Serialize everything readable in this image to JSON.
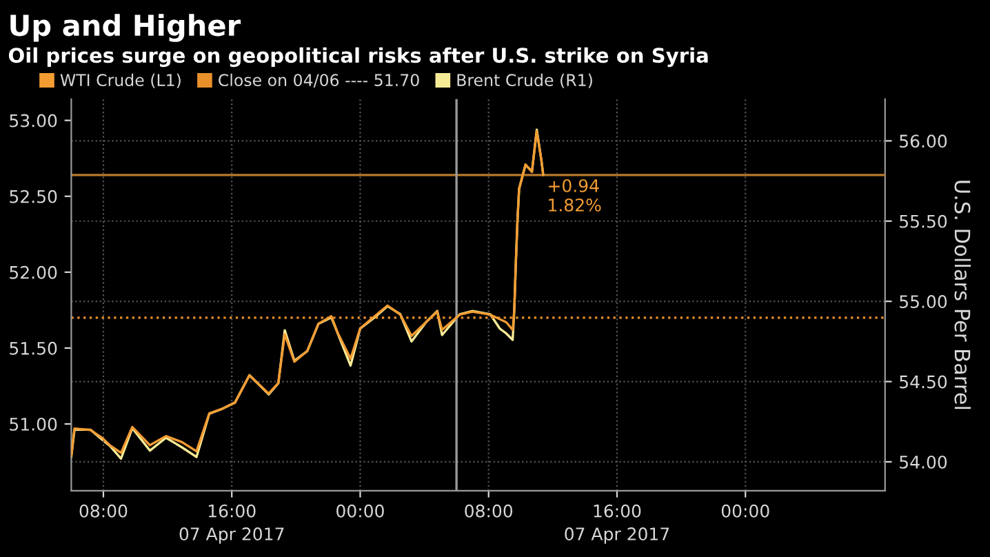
{
  "chart_data": {
    "type": "line",
    "title": "Up and Higher",
    "subtitle": "Oil prices surge on geopolitical risks after U.S. strike on Syria",
    "y2label": "U.S. Dollars Per Barrel",
    "xlim": [
      "2017-04-06T06:00",
      "2017-04-08T08:42"
    ],
    "xticks": [
      {
        "value": "2017-04-06T08:00",
        "label": "08:00"
      },
      {
        "value": "2017-04-06T16:00",
        "label": "16:00"
      },
      {
        "value": "2017-04-07T00:00",
        "label": "00:00"
      },
      {
        "value": "2017-04-07T08:00",
        "label": "08:00"
      },
      {
        "value": "2017-04-07T16:00",
        "label": "16:00"
      },
      {
        "value": "2017-04-08T00:00",
        "label": "00:00"
      }
    ],
    "ylim": [
      50.56,
      53.14
    ],
    "yticks": [
      {
        "value": 51,
        "label": "51.00"
      },
      {
        "value": 51.5,
        "label": "51.50"
      },
      {
        "value": 52,
        "label": "52.00"
      },
      {
        "value": 52.5,
        "label": "52.50"
      },
      {
        "value": 53,
        "label": "53.00"
      }
    ],
    "y2lim": [
      53.82,
      56.26
    ],
    "y2ticks": [
      {
        "value": 54,
        "label": "54.00"
      },
      {
        "value": 54.5,
        "label": "54.50"
      },
      {
        "value": 55,
        "label": "55.00"
      },
      {
        "value": 55.5,
        "label": "55.50"
      },
      {
        "value": 56,
        "label": "56.00"
      }
    ],
    "x": [
      "2017-04-06T06:00",
      "2017-04-06T06:12",
      "2017-04-06T07:12",
      "2017-04-06T07:54",
      "2017-04-06T08:24",
      "2017-04-06T09:06",
      "2017-04-06T09:48",
      "2017-04-06T10:54",
      "2017-04-06T11:54",
      "2017-04-06T12:54",
      "2017-04-06T13:48",
      "2017-04-06T14:36",
      "2017-04-06T15:24",
      "2017-04-06T16:12",
      "2017-04-06T17:06",
      "2017-04-06T18:18",
      "2017-04-06T18:54",
      "2017-04-06T19:18",
      "2017-04-06T19:54",
      "2017-04-06T20:42",
      "2017-04-06T21:24",
      "2017-04-06T22:12",
      "2017-04-06T22:36",
      "2017-04-06T23:24",
      "2017-04-07T00:00",
      "2017-04-07T00:54",
      "2017-04-07T01:42",
      "2017-04-07T02:30",
      "2017-04-07T03:12",
      "2017-04-07T04:06",
      "2017-04-07T04:48",
      "2017-04-07T05:06",
      "2017-04-07T06:12",
      "2017-04-07T07:00",
      "2017-04-07T08:06",
      "2017-04-07T08:42",
      "2017-04-07T09:06",
      "2017-04-07T09:30",
      "2017-04-07T09:36",
      "2017-04-07T09:42",
      "2017-04-07T09:48",
      "2017-04-07T09:54",
      "2017-04-07T10:18",
      "2017-04-07T10:42",
      "2017-04-07T11:00",
      "2017-04-07T11:18",
      "2017-04-07T11:24"
    ],
    "series": [
      {
        "name": "WTI Crude (L1)",
        "color": "#f39c32",
        "values": [
          50.79,
          50.97,
          50.96,
          50.91,
          50.86,
          50.81,
          50.98,
          50.86,
          50.92,
          50.88,
          50.82,
          51.07,
          51.1,
          51.14,
          51.32,
          51.2,
          51.27,
          51.59,
          51.41,
          51.48,
          51.66,
          51.71,
          51.6,
          51.43,
          51.63,
          51.71,
          51.78,
          51.72,
          51.58,
          51.67,
          51.74,
          51.62,
          51.72,
          51.74,
          51.72,
          51.69,
          51.67,
          51.62,
          51.75,
          52.07,
          52.34,
          52.55,
          52.71,
          52.66,
          52.93,
          52.73,
          52.64
        ]
      },
      {
        "name": "Brent Crude (R1)",
        "color": "#f6eb95",
        "axis": "y2",
        "values": [
          54.03,
          54.2,
          54.2,
          54.14,
          54.1,
          54.02,
          54.21,
          54.07,
          54.15,
          54.09,
          54.03,
          54.3,
          54.33,
          54.37,
          54.54,
          54.42,
          54.49,
          54.82,
          54.63,
          54.69,
          54.86,
          54.9,
          54.8,
          54.6,
          54.83,
          54.9,
          54.97,
          54.92,
          54.75,
          54.87,
          54.94,
          54.79,
          54.92,
          54.94,
          54.92,
          54.83,
          54.8,
          54.76,
          54.95,
          55.25,
          55.51,
          55.7,
          55.85,
          55.81,
          56.07,
          55.87,
          55.79
        ]
      }
    ],
    "ref_lines": [
      {
        "axis": "y",
        "value": 51.7,
        "label": "Close on 04/06 ---- 51.70",
        "color": "#e8902a",
        "line_style": "dotted"
      },
      {
        "axis": "y",
        "value": 52.64,
        "color": "#b8792a",
        "line_style": "solid"
      },
      {
        "axis": "x",
        "value": "2017-04-07T06:00",
        "color": "#9a9a9a",
        "line_style": "solid"
      }
    ],
    "annotations": [
      {
        "text": "+0.94\n1.82%",
        "x": "2017-04-07T11:24",
        "y": 52.64
      },
      "07 Apr 2017",
      "07 Apr 2017"
    ],
    "grid": true,
    "legend": "top left",
    "line_style": "solid",
    "marker": "none"
  }
}
